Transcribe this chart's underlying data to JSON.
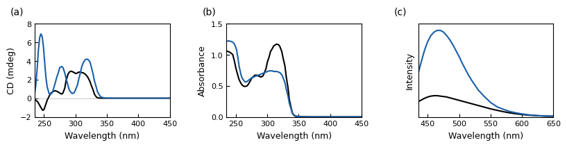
{
  "panel_a": {
    "label": "(a)",
    "xlabel": "Wavelength (nm)",
    "ylabel": "CD (mdeg)",
    "xlim": [
      235,
      450
    ],
    "ylim": [
      -2,
      8
    ],
    "yticks": [
      -2,
      0,
      2,
      4,
      6,
      8
    ],
    "xticks": [
      250,
      300,
      350,
      400,
      450
    ],
    "black_x": [
      235,
      240,
      245,
      248,
      250,
      252,
      255,
      258,
      260,
      263,
      265,
      268,
      270,
      273,
      275,
      278,
      280,
      283,
      285,
      288,
      290,
      293,
      295,
      298,
      300,
      303,
      305,
      308,
      310,
      313,
      315,
      318,
      320,
      323,
      325,
      328,
      330,
      333,
      335,
      338,
      340,
      345,
      350,
      360,
      370,
      380,
      390,
      400,
      420,
      450
    ],
    "black_y": [
      -0.1,
      -0.4,
      -1.0,
      -1.3,
      -1.2,
      -0.8,
      -0.2,
      0.2,
      0.5,
      0.65,
      0.75,
      0.8,
      0.75,
      0.65,
      0.55,
      0.45,
      0.55,
      1.1,
      1.9,
      2.55,
      2.8,
      2.9,
      2.85,
      2.75,
      2.65,
      2.7,
      2.8,
      2.8,
      2.75,
      2.7,
      2.6,
      2.4,
      2.2,
      1.8,
      1.4,
      0.9,
      0.45,
      0.15,
      0.05,
      0.02,
      0.01,
      0.0,
      0.0,
      0.0,
      0.0,
      0.0,
      0.0,
      0.0,
      0.0,
      0.0
    ],
    "blue_x": [
      235,
      237,
      239,
      241,
      243,
      245,
      247,
      249,
      251,
      253,
      255,
      258,
      260,
      263,
      265,
      268,
      270,
      273,
      275,
      278,
      280,
      283,
      285,
      288,
      290,
      293,
      295,
      298,
      300,
      303,
      305,
      308,
      310,
      313,
      315,
      318,
      320,
      323,
      325,
      328,
      330,
      333,
      335,
      338,
      340,
      345,
      350,
      360,
      370,
      380,
      390,
      400,
      420,
      450
    ],
    "blue_y": [
      0.5,
      1.5,
      3.2,
      5.2,
      6.5,
      6.9,
      6.6,
      5.5,
      3.8,
      2.2,
      1.2,
      0.5,
      0.4,
      0.6,
      1.0,
      1.7,
      2.2,
      2.8,
      3.3,
      3.4,
      3.3,
      2.7,
      2.1,
      1.4,
      0.9,
      0.6,
      0.5,
      0.6,
      0.9,
      1.4,
      2.0,
      2.8,
      3.4,
      3.9,
      4.1,
      4.2,
      4.15,
      3.9,
      3.4,
      2.6,
      1.9,
      1.2,
      0.7,
      0.35,
      0.15,
      0.04,
      0.01,
      0.0,
      0.0,
      0.0,
      0.0,
      0.0,
      0.0,
      0.0
    ]
  },
  "panel_b": {
    "label": "(b)",
    "xlabel": "Wavelength (nm)",
    "ylabel": "Absorbance",
    "xlim": [
      235,
      450
    ],
    "ylim": [
      0,
      1.5
    ],
    "yticks": [
      0.0,
      0.5,
      1.0,
      1.5
    ],
    "xticks": [
      250,
      300,
      350,
      400,
      450
    ],
    "black_x": [
      235,
      238,
      240,
      243,
      245,
      248,
      250,
      253,
      255,
      258,
      260,
      263,
      265,
      268,
      270,
      273,
      275,
      278,
      280,
      283,
      285,
      288,
      290,
      293,
      295,
      298,
      300,
      303,
      305,
      308,
      310,
      313,
      315,
      318,
      320,
      323,
      325,
      328,
      330,
      333,
      335,
      338,
      340,
      343,
      345,
      350,
      355,
      360,
      365,
      370,
      375,
      380,
      390,
      400,
      420,
      450
    ],
    "black_y": [
      1.06,
      1.05,
      1.04,
      1.02,
      1.0,
      0.88,
      0.78,
      0.67,
      0.6,
      0.54,
      0.51,
      0.49,
      0.49,
      0.5,
      0.53,
      0.58,
      0.62,
      0.65,
      0.67,
      0.67,
      0.66,
      0.65,
      0.64,
      0.66,
      0.7,
      0.78,
      0.88,
      0.97,
      1.05,
      1.1,
      1.14,
      1.16,
      1.17,
      1.16,
      1.13,
      1.05,
      0.95,
      0.82,
      0.65,
      0.46,
      0.28,
      0.14,
      0.06,
      0.02,
      0.01,
      0.005,
      0.003,
      0.002,
      0.001,
      0.0,
      0.0,
      0.0,
      0.0,
      0.0,
      0.0,
      0.0
    ],
    "blue_x": [
      235,
      238,
      240,
      243,
      245,
      247,
      249,
      251,
      253,
      255,
      258,
      260,
      263,
      265,
      268,
      270,
      273,
      275,
      278,
      280,
      283,
      285,
      288,
      290,
      293,
      295,
      298,
      300,
      303,
      305,
      308,
      310,
      313,
      315,
      318,
      320,
      323,
      325,
      328,
      330,
      333,
      335,
      338,
      340,
      345,
      350,
      355,
      360,
      365,
      370,
      375,
      380,
      390,
      400,
      420,
      450
    ],
    "blue_y": [
      1.22,
      1.22,
      1.22,
      1.21,
      1.2,
      1.18,
      1.14,
      1.08,
      0.96,
      0.82,
      0.68,
      0.62,
      0.58,
      0.56,
      0.57,
      0.59,
      0.61,
      0.63,
      0.64,
      0.65,
      0.66,
      0.67,
      0.68,
      0.69,
      0.7,
      0.71,
      0.72,
      0.73,
      0.74,
      0.74,
      0.74,
      0.73,
      0.73,
      0.73,
      0.72,
      0.71,
      0.68,
      0.63,
      0.55,
      0.45,
      0.33,
      0.22,
      0.12,
      0.05,
      0.015,
      0.005,
      0.003,
      0.002,
      0.001,
      0.0,
      0.0,
      0.0,
      0.0,
      0.0,
      0.0,
      0.0
    ]
  },
  "panel_c": {
    "label": "(c)",
    "xlabel": "Wavelength (nm)",
    "ylabel": "Intensity",
    "xlim": [
      435,
      650
    ],
    "ylim": [
      0,
      1.1
    ],
    "yticks": [],
    "xticks": [
      450,
      500,
      550,
      600,
      650
    ],
    "black_x": [
      435,
      440,
      445,
      450,
      455,
      460,
      465,
      470,
      475,
      480,
      485,
      490,
      495,
      500,
      505,
      510,
      515,
      520,
      530,
      540,
      550,
      560,
      570,
      580,
      590,
      600,
      610,
      620,
      630,
      640,
      650
    ],
    "black_y": [
      0.18,
      0.2,
      0.22,
      0.235,
      0.245,
      0.25,
      0.25,
      0.245,
      0.24,
      0.235,
      0.225,
      0.215,
      0.205,
      0.195,
      0.185,
      0.175,
      0.165,
      0.155,
      0.135,
      0.115,
      0.095,
      0.078,
      0.062,
      0.048,
      0.037,
      0.028,
      0.021,
      0.016,
      0.012,
      0.009,
      0.007
    ],
    "blue_x": [
      435,
      440,
      445,
      450,
      455,
      460,
      465,
      470,
      475,
      480,
      485,
      490,
      495,
      500,
      505,
      510,
      515,
      520,
      530,
      540,
      550,
      560,
      570,
      580,
      590,
      600,
      610,
      620,
      630,
      640,
      650
    ],
    "blue_y": [
      0.52,
      0.66,
      0.79,
      0.89,
      0.96,
      1.0,
      1.02,
      1.02,
      1.0,
      0.96,
      0.91,
      0.85,
      0.78,
      0.71,
      0.63,
      0.56,
      0.49,
      0.43,
      0.32,
      0.24,
      0.17,
      0.12,
      0.09,
      0.065,
      0.048,
      0.035,
      0.025,
      0.018,
      0.013,
      0.009,
      0.007
    ]
  },
  "black_color": "#000000",
  "blue_color": "#1a5fa8",
  "line_width": 1.5,
  "label_fontsize": 9,
  "tick_fontsize": 8,
  "panel_label_fontsize": 10
}
